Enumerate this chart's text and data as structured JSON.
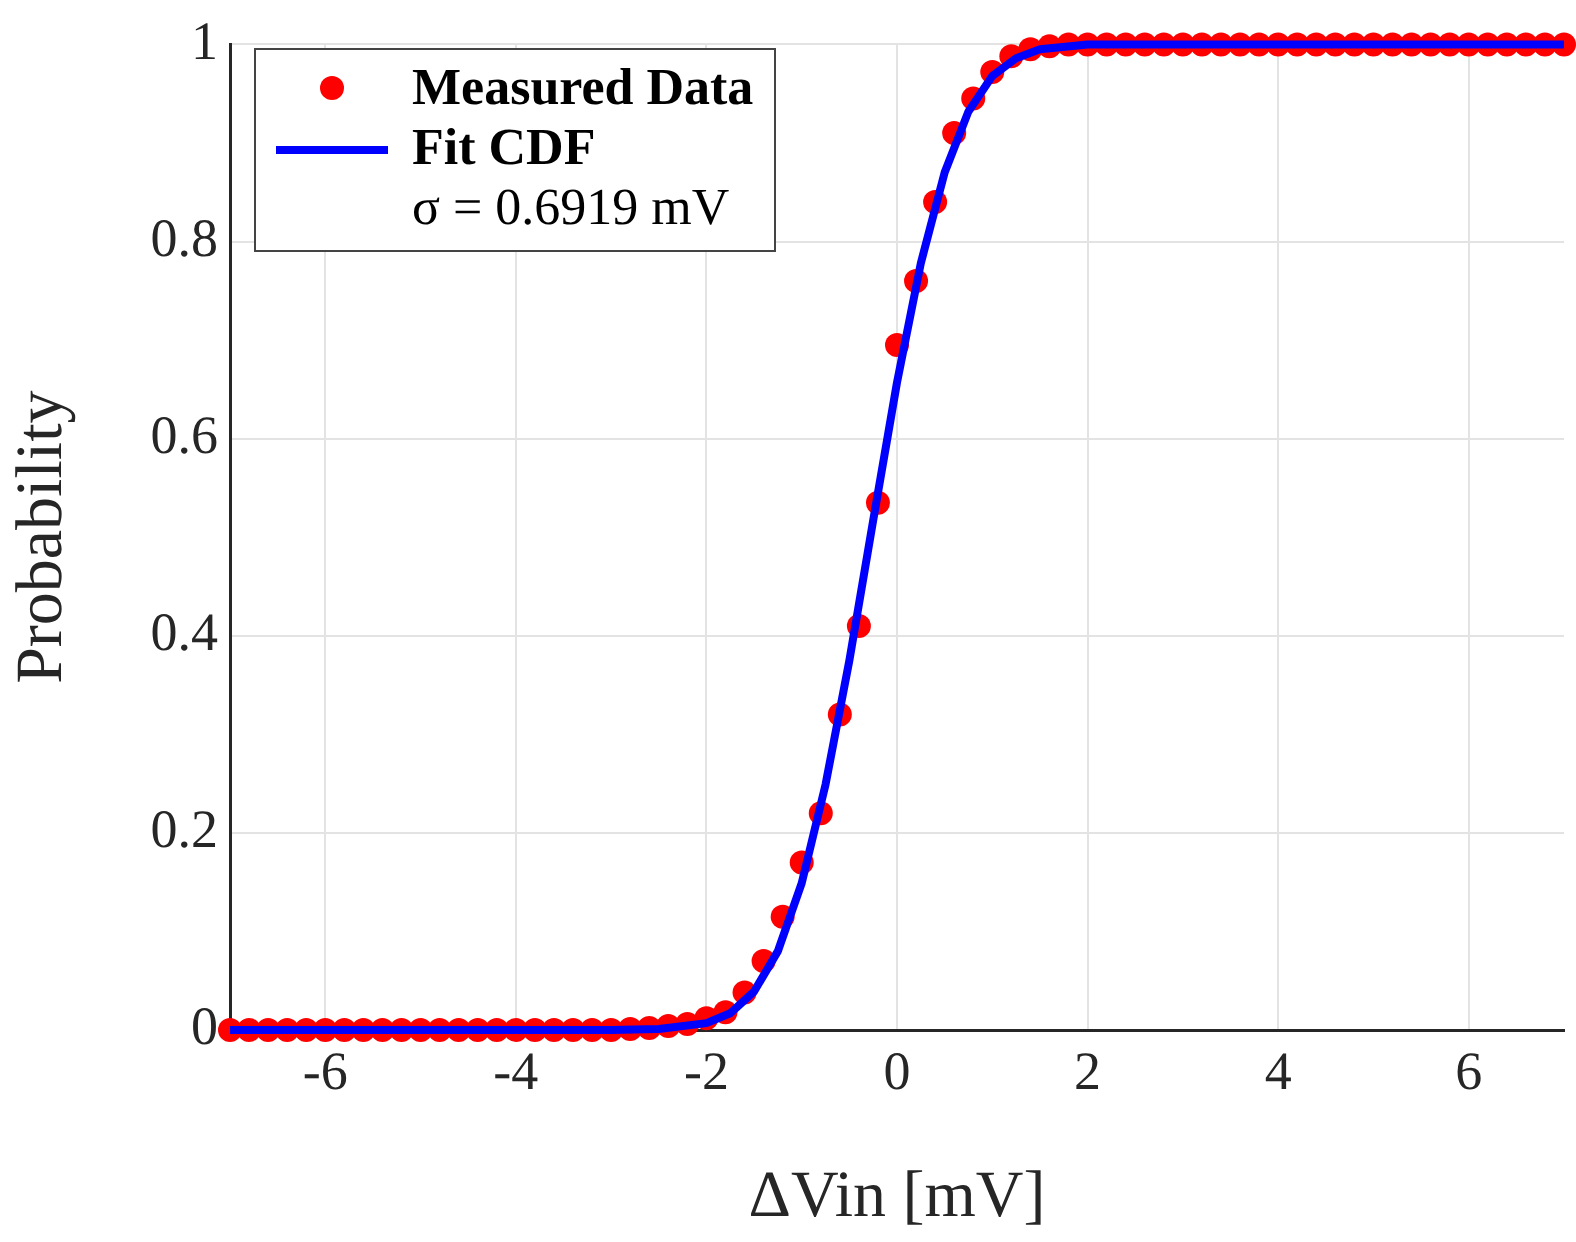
{
  "chart_data": {
    "type": "line",
    "xlabel": "ΔVin [mV]",
    "ylabel": "Probability",
    "xlim": [
      -7,
      7
    ],
    "xticks": [
      -6,
      -4,
      -2,
      0,
      2,
      4,
      6
    ],
    "ylim": [
      0,
      1
    ],
    "yticks": [
      0,
      0.2,
      0.4,
      0.6,
      0.8,
      1
    ],
    "grid": true,
    "legend": "top left",
    "annotations": [
      "σ = 0.6919 mV"
    ],
    "series": [
      {
        "name": "Measured Data",
        "type": "scatter",
        "marker": "circle",
        "color": "#ff0000",
        "x": [
          -7,
          -6.8,
          -6.6,
          -6.4,
          -6.2,
          -6,
          -5.8,
          -5.6,
          -5.4,
          -5.2,
          -5,
          -4.8,
          -4.6,
          -4.4,
          -4.2,
          -4,
          -3.8,
          -3.6,
          -3.4,
          -3.2,
          -3,
          -2.8,
          -2.6,
          -2.4,
          -2.2,
          -2,
          -1.8,
          -1.6,
          -1.4,
          -1.2,
          -1,
          -0.8,
          -0.6,
          -0.4,
          -0.2,
          0,
          0.2,
          0.4,
          0.6,
          0.8,
          1,
          1.2,
          1.4,
          1.6,
          1.8,
          2,
          2.2,
          2.4,
          2.6,
          2.8,
          3,
          3.2,
          3.4,
          3.6,
          3.8,
          4,
          4.2,
          4.4,
          4.6,
          4.8,
          5,
          5.2,
          5.4,
          5.6,
          5.8,
          6,
          6.2,
          6.4,
          6.6,
          6.8,
          7
        ],
        "values": [
          0,
          0,
          0,
          0,
          0,
          0,
          0,
          0,
          0,
          0,
          0,
          0,
          0,
          0,
          0,
          0,
          0,
          0,
          0,
          0,
          0,
          0.001,
          0.002,
          0.004,
          0.006,
          0.012,
          0.018,
          0.038,
          0.07,
          0.115,
          0.17,
          0.22,
          0.32,
          0.41,
          0.535,
          0.695,
          0.76,
          0.84,
          0.91,
          0.945,
          0.972,
          0.988,
          0.995,
          0.998,
          1,
          1,
          1,
          1,
          1,
          1,
          1,
          1,
          1,
          1,
          1,
          1,
          1,
          1,
          1,
          1,
          1,
          1,
          1,
          1,
          1,
          1,
          1,
          1,
          1,
          1,
          1
        ]
      },
      {
        "name": "Fit CDF",
        "marker": "none",
        "line_style": "solid",
        "color": "#0000ff",
        "x": [
          -7,
          -3,
          -2.5,
          -2,
          -1.75,
          -1.5,
          -1.25,
          -1,
          -0.75,
          -0.5,
          -0.25,
          0,
          0.25,
          0.5,
          0.75,
          1,
          1.25,
          1.5,
          2,
          3,
          7
        ],
        "values": [
          0,
          0,
          0.001,
          0.007,
          0.017,
          0.039,
          0.08,
          0.149,
          0.249,
          0.375,
          0.517,
          0.657,
          0.778,
          0.87,
          0.932,
          0.968,
          0.986,
          0.995,
          1,
          1,
          1
        ]
      }
    ]
  }
}
